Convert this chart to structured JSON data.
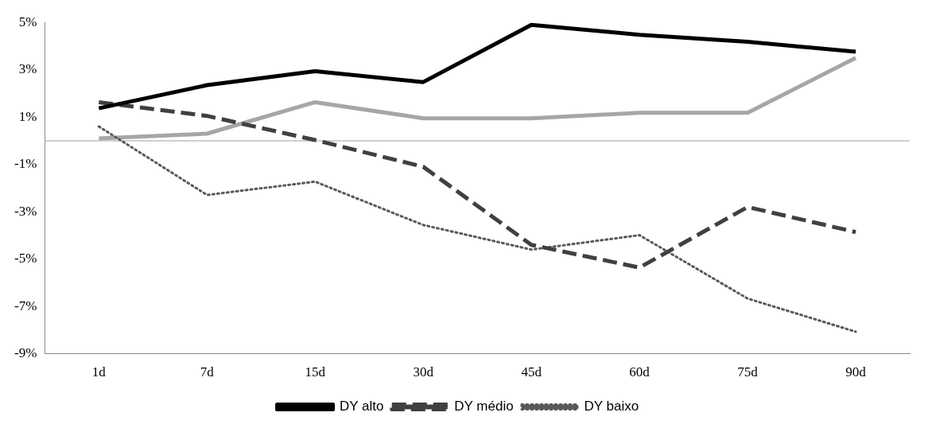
{
  "chart_data": {
    "type": "line",
    "categories": [
      "1d",
      "7d",
      "15d",
      "30d",
      "45d",
      "60d",
      "75d",
      "90d"
    ],
    "series": [
      {
        "name": "DY alto",
        "color": "#000000",
        "line_style": "solid",
        "values": [
          1.37,
          2.35,
          2.94,
          2.48,
          4.9,
          4.48,
          4.18,
          3.76
        ]
      },
      {
        "name": "DY médio",
        "color": "#404040",
        "line_style": "dashed",
        "values": [
          1.63,
          1.05,
          0.03,
          -1.1,
          -4.4,
          -5.36,
          -2.8,
          -3.86
        ]
      },
      {
        "name": "DY baixo",
        "color": "#595959",
        "line_style": "dotted",
        "values": [
          0.6,
          -2.29,
          -1.73,
          -3.56,
          -4.6,
          -3.99,
          -6.67,
          -8.07
        ]
      },
      {
        "color": "#a6a6a6",
        "line_style": "solid",
        "values": [
          0.1,
          0.3,
          1.63,
          0.95,
          0.95,
          1.18,
          1.18,
          3.5
        ]
      }
    ],
    "ylim": [
      -9,
      5
    ],
    "yticks": [
      {
        "value": -9,
        "label": "-9%"
      },
      {
        "value": -7,
        "label": "-7%"
      },
      {
        "value": -5,
        "label": "-5%"
      },
      {
        "value": -3,
        "label": "-3%"
      },
      {
        "value": -1,
        "label": "-1%"
      },
      {
        "value": 1,
        "label": "1%"
      },
      {
        "value": 3,
        "label": "3%"
      },
      {
        "value": 5,
        "label": "5%"
      }
    ],
    "ref_lines": [
      {
        "axis": "y",
        "value": 0,
        "color": "#bfbfbf"
      }
    ],
    "grid": false,
    "legend": "bottom",
    "marker": "none"
  }
}
